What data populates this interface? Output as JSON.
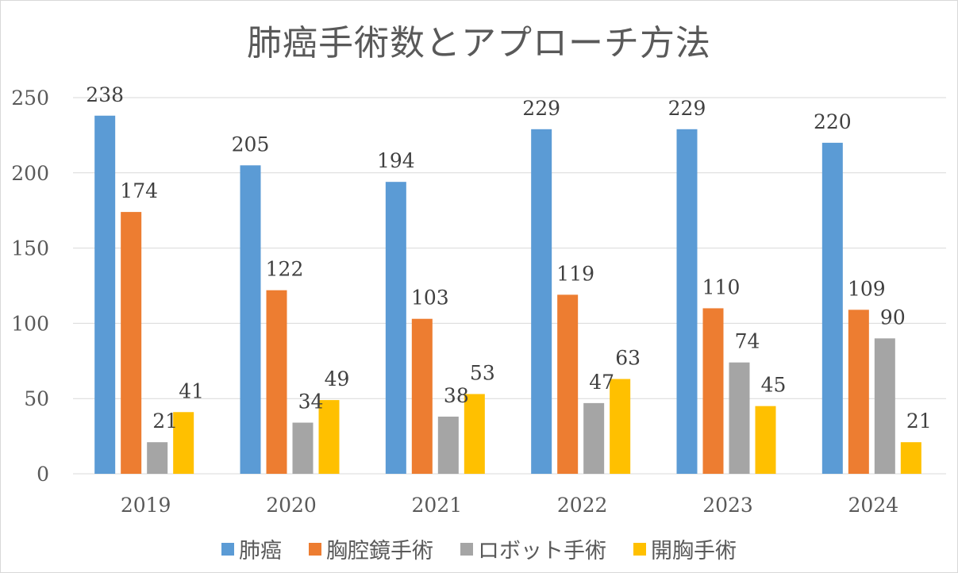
{
  "chart_data": {
    "type": "bar",
    "title": "肺癌手術数とアプローチ方法",
    "xlabel": "",
    "ylabel": "",
    "categories": [
      "2019",
      "2020",
      "2021",
      "2022",
      "2023",
      "2024"
    ],
    "series": [
      {
        "name": "肺癌",
        "color": "#5b9bd5",
        "values": [
          238,
          205,
          194,
          229,
          229,
          220
        ]
      },
      {
        "name": "胸腔鏡手術",
        "color": "#ed7d31",
        "values": [
          174,
          122,
          103,
          119,
          110,
          109
        ]
      },
      {
        "name": "ロボット手術",
        "color": "#a5a5a5",
        "values": [
          21,
          34,
          38,
          47,
          74,
          90
        ]
      },
      {
        "name": "開胸手術",
        "color": "#ffc000",
        "values": [
          41,
          49,
          53,
          63,
          45,
          21
        ]
      }
    ],
    "ylim": [
      0,
      250
    ],
    "yticks": [
      0,
      50,
      100,
      150,
      200,
      250
    ],
    "grid": true,
    "data_labels": true,
    "legend_position": "bottom"
  }
}
